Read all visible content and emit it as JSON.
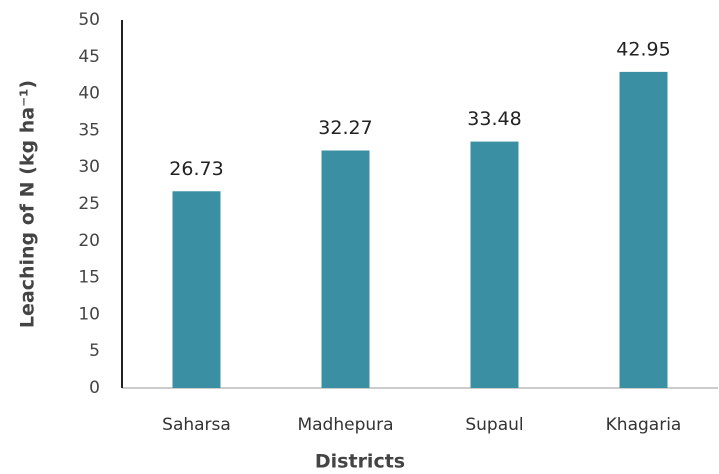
{
  "chart_data": {
    "type": "bar",
    "categories": [
      "Saharsa",
      "Madhepura",
      "Supaul",
      "Khagaria"
    ],
    "values": [
      26.73,
      32.27,
      33.48,
      42.95
    ],
    "color": "#3a8fa3",
    "xlabel": "Districts",
    "ylabel": "Leaching of N (kg ha⁻¹)",
    "ylim": [
      0,
      50
    ],
    "yticks": [
      0,
      5,
      10,
      15,
      20,
      25,
      30,
      35,
      40,
      45,
      50
    ],
    "grid": false
  }
}
